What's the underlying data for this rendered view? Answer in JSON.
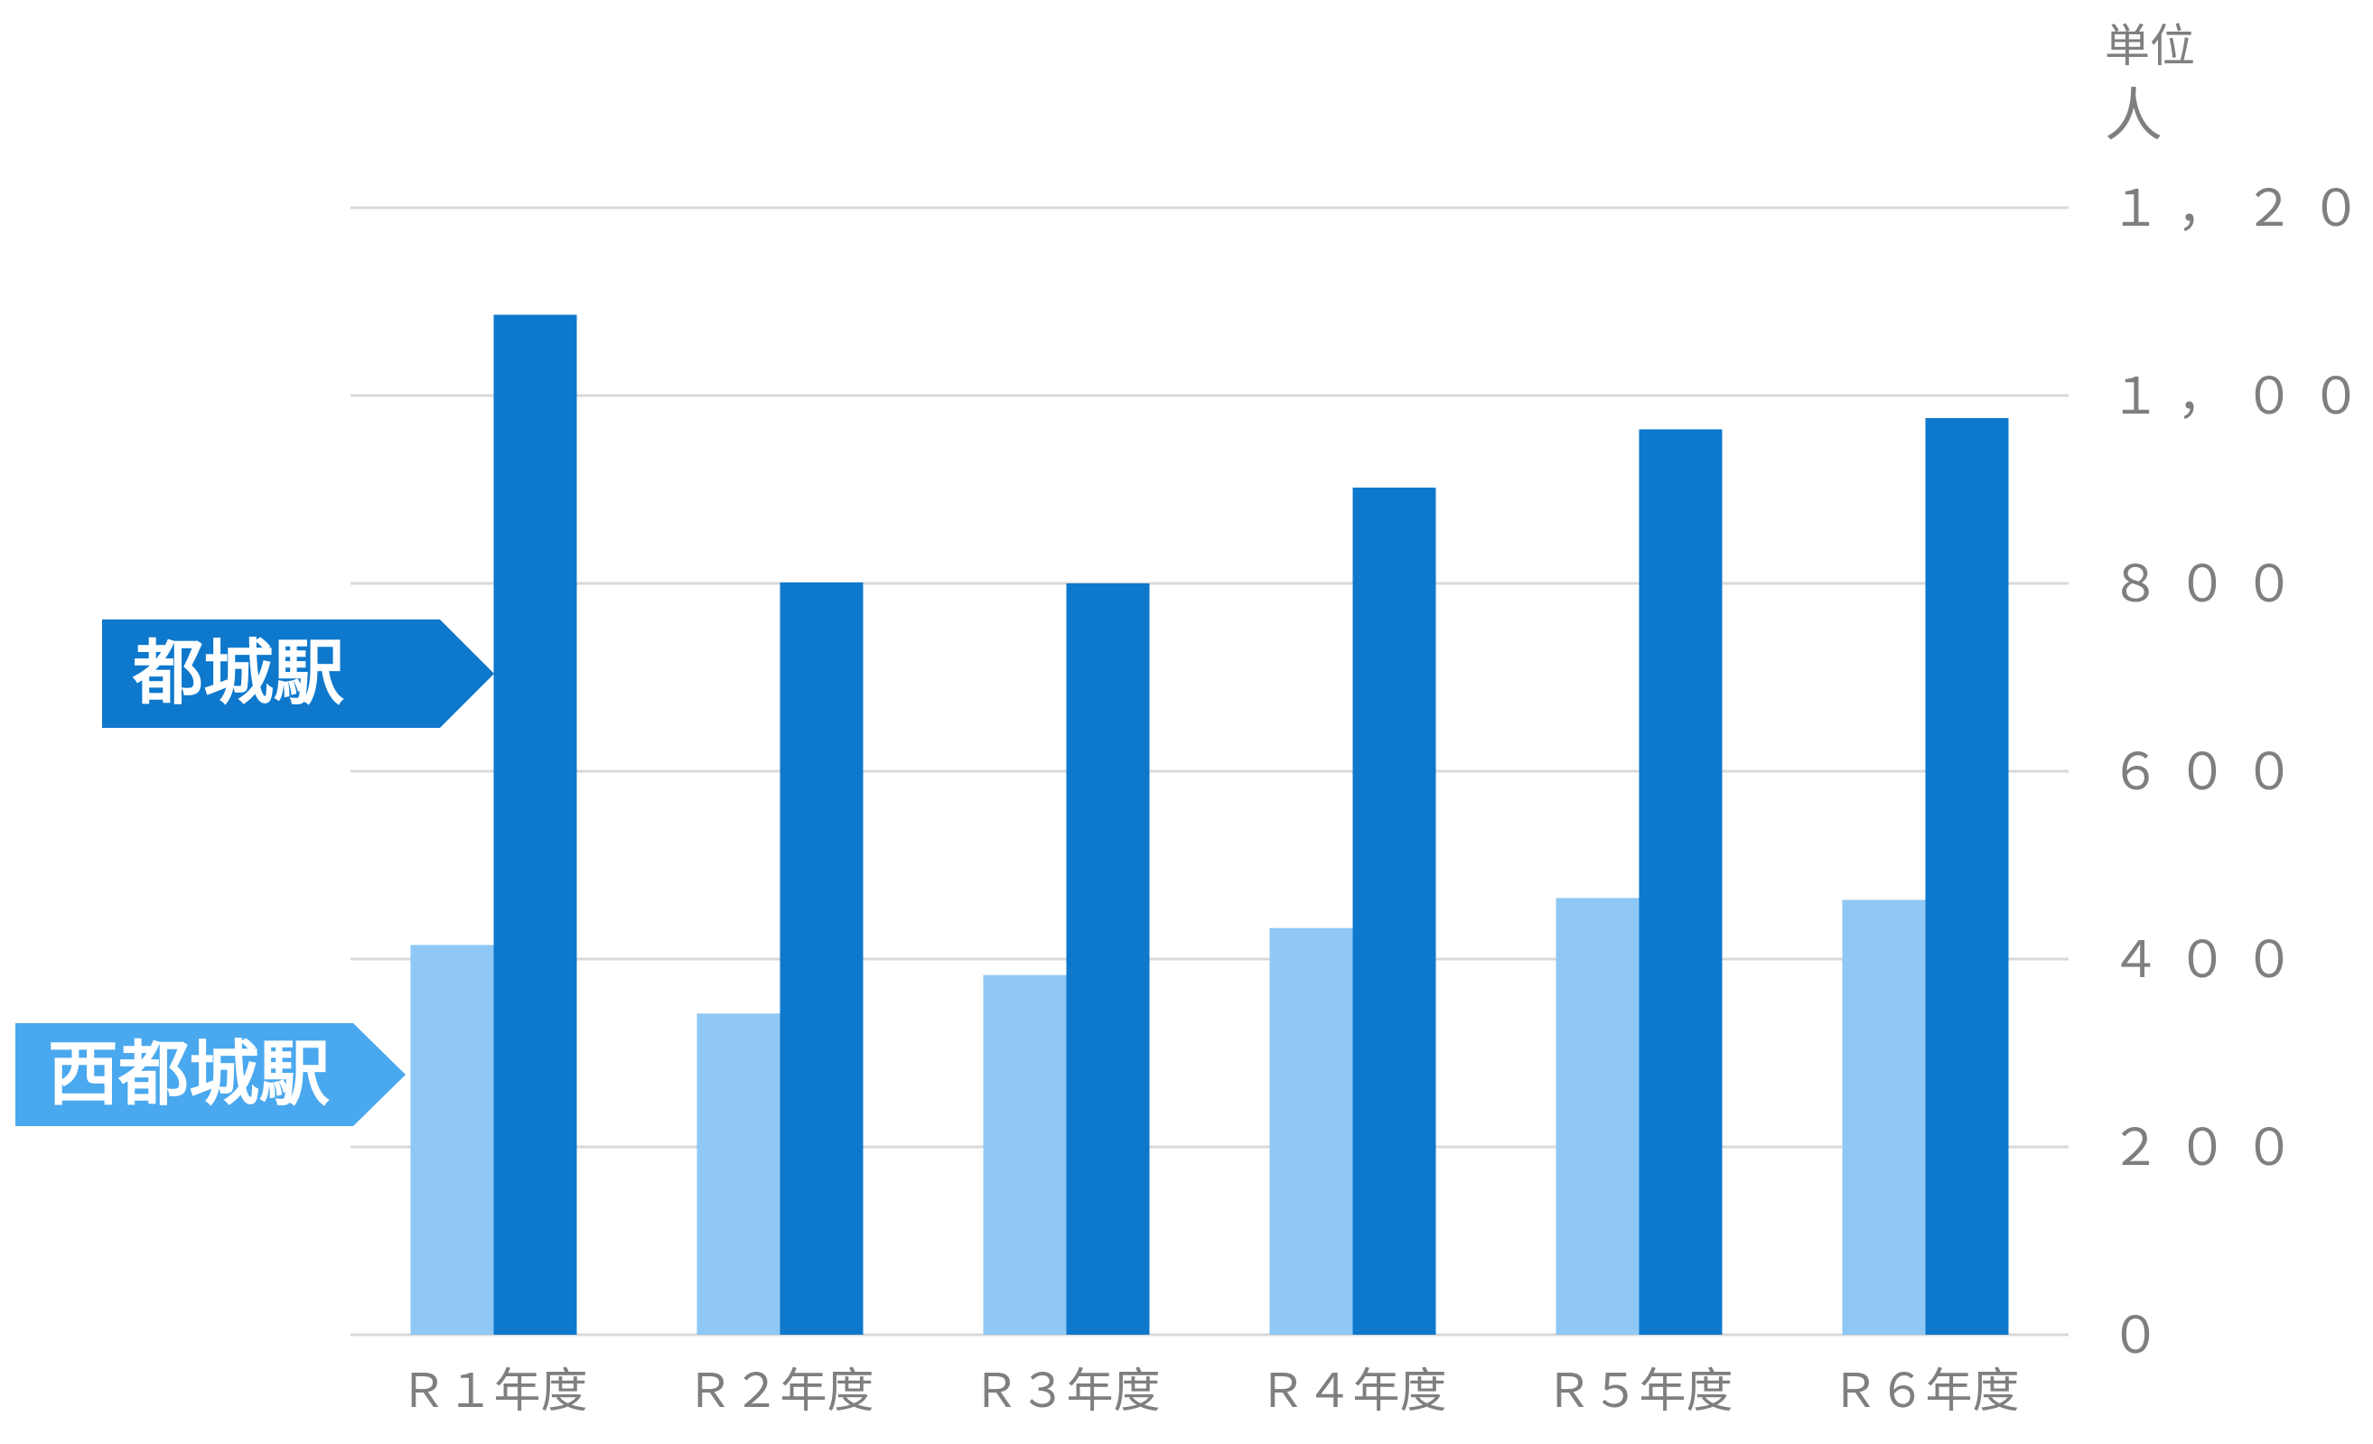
{
  "chart_data": {
    "type": "bar",
    "categories": [
      "Ｒ１年度",
      "Ｒ２年度",
      "Ｒ３年度",
      "Ｒ４年度",
      "Ｒ５年度",
      "Ｒ６年度"
    ],
    "series": [
      {
        "name": "西都城駅",
        "color": "#8fc8f4",
        "values": [
          415,
          342,
          383,
          433,
          465,
          463
        ]
      },
      {
        "name": "都城駅",
        "color": "#0e78cc",
        "values": [
          1086,
          801,
          800,
          902,
          964,
          976
        ]
      }
    ],
    "y_ticks": [
      "０",
      "２００",
      "４００",
      "６００",
      "８００",
      "１，０００",
      "１，２００"
    ],
    "y_tick_values": [
      0,
      200,
      400,
      600,
      800,
      1000,
      1200
    ],
    "ylim": [
      0,
      1200
    ],
    "y_axis_side": "right",
    "unit_label_line1": "単位",
    "unit_label_line2": "人",
    "grid": true,
    "legend": "left, arrow-shaped labels pointing at the bars",
    "gridline_color": "#d9d9d9",
    "tick_color": "#7f7f7f"
  }
}
